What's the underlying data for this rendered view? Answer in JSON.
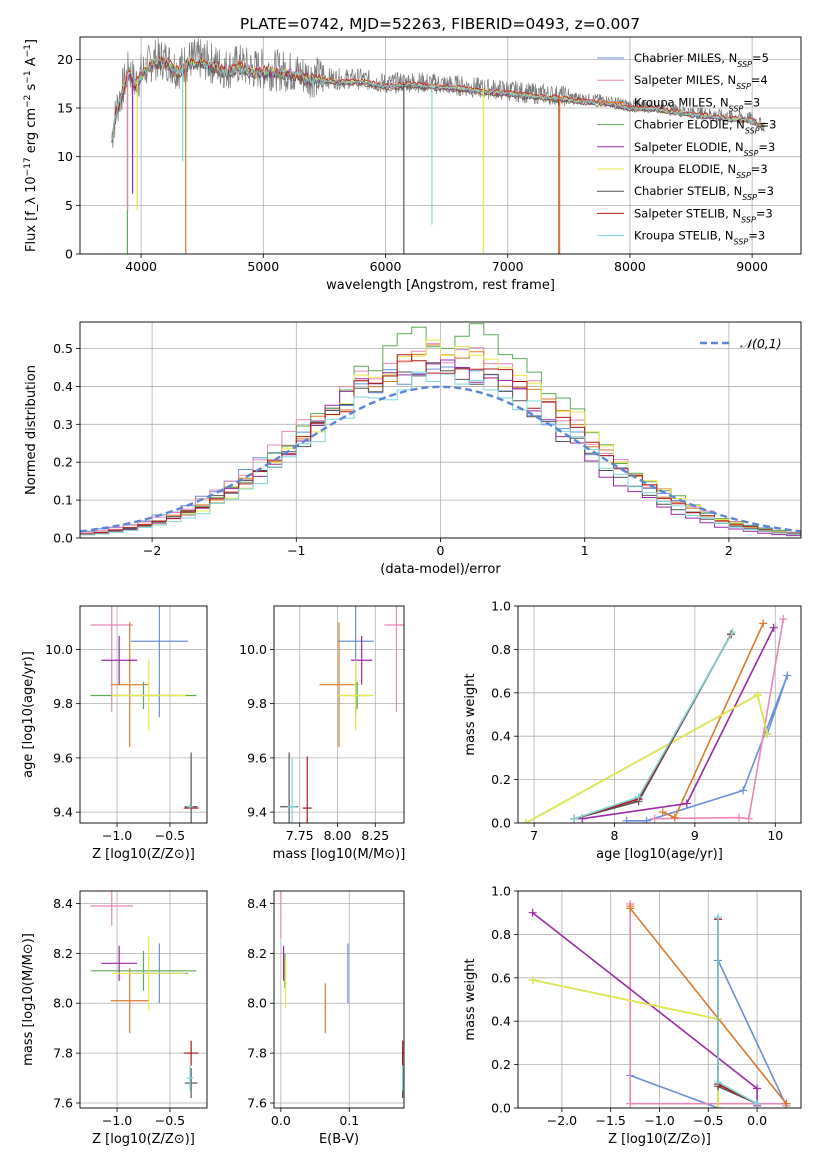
{
  "title": "PLATE=0742, MJD=52263, FIBERID=0493, z=0.007",
  "colors": {
    "Chabrier MILES": "#6a8fdb",
    "Salpeter MILES": "#e887b8",
    "Kroupa MILES": "#dd7a2a",
    "Chabrier ELODIE": "#5aaa55",
    "Salpeter ELODIE": "#9a2aa8",
    "Kroupa ELODIE": "#e6e84a",
    "Chabrier STELIB": "#555555",
    "Salpeter STELIB": "#b01818",
    "Kroupa STELIB": "#7fd8dc",
    "gauss": "#5b86d6"
  },
  "legend_spectrum": [
    "Chabrier MILES, N_SSP=5",
    "Salpeter MILES, N_SSP=4",
    "Kroupa MILES, N_SSP=3",
    "Chabrier ELODIE, N_SSP=3",
    "Salpeter ELODIE, N_SSP=3",
    "Kroupa ELODIE, N_SSP=3",
    "Chabrier STELIB, N_SSP=3",
    "Salpeter STELIB, N_SSP=3",
    "Kroupa STELIB, N_SSP=3"
  ],
  "legend_names": [
    "Chabrier MILES",
    "Salpeter MILES",
    "Kroupa MILES",
    "Chabrier ELODIE",
    "Salpeter ELODIE",
    "Kroupa ELODIE",
    "Chabrier STELIB",
    "Salpeter STELIB",
    "Kroupa STELIB"
  ],
  "legend_nssp": [
    "5",
    "4",
    "3",
    "3",
    "3",
    "3",
    "3",
    "3",
    "3"
  ],
  "legend_hist": "𝒩(0,1)",
  "chart_data": [
    {
      "id": "spectrum",
      "type": "line",
      "xlabel": "wavelength [Angstrom, rest frame]",
      "ylabel": "Flux [f_λ 10^-17 erg cm^-2 s^-1 A^-1]",
      "xlim": [
        3500,
        9400
      ],
      "ylim": [
        0,
        22.3
      ],
      "xticks": [
        4000,
        5000,
        6000,
        7000,
        8000,
        9000
      ],
      "yticks": [
        0,
        5,
        10,
        15,
        20
      ],
      "observed": {
        "x": [
          3760,
          3800,
          3850,
          3900,
          3950,
          4000,
          4100,
          4200,
          4300,
          4400,
          4500,
          4600,
          4700,
          4800,
          4900,
          5000,
          5200,
          5400,
          5600,
          5800,
          6000,
          6200,
          6400,
          6600,
          6800,
          7000,
          7200,
          7400,
          7600,
          7800,
          8000,
          8200,
          8400,
          8600,
          8800,
          9000,
          9100
        ],
        "y": [
          12,
          15,
          17,
          19,
          17.5,
          18.5,
          20,
          20,
          19,
          20,
          20,
          19.5,
          19,
          19.5,
          19,
          19,
          18.8,
          18.2,
          18,
          18,
          17.5,
          17.7,
          17.5,
          17.3,
          17,
          16.8,
          16.5,
          16.3,
          16,
          15.8,
          15.3,
          15.2,
          14.8,
          14.5,
          14.2,
          14,
          13.2
        ]
      },
      "model_scale": [
        1.0,
        1.01,
        0.99,
        1.0,
        0.995,
        1.005,
        0.985,
        1.01,
        1.0
      ],
      "dips": [
        {
          "x": 3888,
          "y": 0,
          "series": "Chabrier ELODIE"
        },
        {
          "x": 3890,
          "y": 4.5,
          "series": "Salpeter MILES"
        },
        {
          "x": 3930,
          "y": 6.2,
          "series": "Salpeter ELODIE"
        },
        {
          "x": 3968,
          "y": 4.5,
          "series": "Kroupa ELODIE"
        },
        {
          "x": 4340,
          "y": 9.5,
          "series": "Kroupa STELIB"
        },
        {
          "x": 4365,
          "y": 0,
          "series": "Kroupa MILES"
        },
        {
          "x": 6150,
          "y": 0,
          "series": "Chabrier STELIB"
        },
        {
          "x": 6380,
          "y": 3,
          "series": "Kroupa STELIB"
        },
        {
          "x": 6800,
          "y": 0,
          "series": "Kroupa ELODIE"
        },
        {
          "x": 7420,
          "y": 0,
          "series": "Salpeter STELIB"
        },
        {
          "x": 7425,
          "y": 0,
          "series": "Kroupa MILES"
        }
      ]
    },
    {
      "id": "residuals",
      "type": "area",
      "xlabel": "(data-model)/error",
      "ylabel": "Normed distribution",
      "xlim": [
        -2.5,
        2.5
      ],
      "ylim": [
        0,
        0.57
      ],
      "xticks": [
        -2,
        -1,
        0,
        1,
        2
      ],
      "yticks": [
        0,
        0.1,
        0.2,
        0.3,
        0.4,
        0.5
      ],
      "bin_width": 0.1,
      "gauss": {
        "mean": 0,
        "sigma": 1
      },
      "peak_heights": [
        0.45,
        0.5,
        0.48,
        0.54,
        0.47,
        0.52,
        0.44,
        0.47,
        0.43
      ],
      "offsets": [
        -0.03,
        0.0,
        0.02,
        0.05,
        -0.05,
        0.07,
        -0.02,
        0.01,
        0.03
      ],
      "widths": [
        0.95,
        0.92,
        0.9,
        0.88,
        0.85,
        0.87,
        0.9,
        0.9,
        0.88
      ]
    },
    {
      "id": "Z-age",
      "type": "scatter",
      "xlabel": "Z [log10(Z/Z⊙)]",
      "ylabel": "age [log10(age/yr)]",
      "xlim": [
        -1.35,
        -0.15
      ],
      "ylim": [
        9.36,
        10.16
      ],
      "xticks": [
        -1.0,
        -0.5
      ],
      "yticks": [
        9.4,
        9.6,
        9.8,
        10.0
      ],
      "points": [
        {
          "x": -0.6,
          "xerr": 0.27,
          "y": 10.03,
          "yerr": 0.28,
          "series": "Chabrier MILES"
        },
        {
          "x": -1.05,
          "xerr": 0.2,
          "y": 10.09,
          "yerr": 0.32,
          "series": "Salpeter MILES"
        },
        {
          "x": -0.88,
          "xerr": 0.18,
          "y": 9.87,
          "yerr": 0.23,
          "series": "Kroupa MILES"
        },
        {
          "x": -0.75,
          "xerr": 0.5,
          "y": 9.83,
          "yerr": 0.05,
          "series": "Chabrier ELODIE"
        },
        {
          "x": -0.98,
          "xerr": 0.17,
          "y": 9.96,
          "yerr": 0.09,
          "series": "Salpeter ELODIE"
        },
        {
          "x": -0.7,
          "xerr": 0.35,
          "y": 9.83,
          "yerr": 0.13,
          "series": "Kroupa ELODIE"
        },
        {
          "x": -0.3,
          "xerr": 0.06,
          "y": 9.42,
          "yerr": 0.2,
          "series": "Chabrier STELIB"
        },
        {
          "x": -0.3,
          "xerr": 0.07,
          "y": 9.415,
          "yerr": 0.005,
          "series": "Salpeter STELIB"
        },
        {
          "x": -0.31,
          "xerr": 0.03,
          "y": 9.42,
          "yerr": 0.01,
          "series": "Kroupa STELIB"
        }
      ]
    },
    {
      "id": "mass-age",
      "type": "scatter",
      "xlabel": "mass [log10(M/M⊙)]",
      "ylabel": "",
      "xlim": [
        7.58,
        8.44
      ],
      "ylim": [
        9.36,
        10.16
      ],
      "xticks": [
        7.75,
        8.0,
        8.25
      ],
      "yticks": [
        9.4,
        9.6,
        9.8,
        10.0
      ],
      "points": [
        {
          "x": 8.12,
          "xerr": 0.12,
          "y": 10.03,
          "yerr": 0.28,
          "series": "Chabrier MILES"
        },
        {
          "x": 8.39,
          "xerr": 0.08,
          "y": 10.09,
          "yerr": 0.32,
          "series": "Salpeter MILES"
        },
        {
          "x": 8.01,
          "xerr": 0.13,
          "y": 9.87,
          "yerr": 0.23,
          "series": "Kroupa MILES"
        },
        {
          "x": 8.13,
          "xerr": 0.08,
          "y": 9.83,
          "yerr": 0.05,
          "series": "Chabrier ELODIE"
        },
        {
          "x": 8.16,
          "xerr": 0.07,
          "y": 9.96,
          "yerr": 0.09,
          "series": "Salpeter ELODIE"
        },
        {
          "x": 8.12,
          "xerr": 0.12,
          "y": 9.83,
          "yerr": 0.13,
          "series": "Kroupa ELODIE"
        },
        {
          "x": 7.68,
          "xerr": 0.06,
          "y": 9.42,
          "yerr": 0.2,
          "series": "Chabrier STELIB"
        },
        {
          "x": 7.8,
          "xerr": 0.03,
          "y": 9.415,
          "yerr": 0.19,
          "series": "Salpeter STELIB"
        },
        {
          "x": 7.7,
          "xerr": 0.03,
          "y": 9.42,
          "yerr": 0.18,
          "series": "Kroupa STELIB"
        }
      ]
    },
    {
      "id": "age-weight",
      "type": "line",
      "xlabel": "age [log10(age/yr)]",
      "ylabel": "mass weight",
      "xlim": [
        6.8,
        10.32
      ],
      "ylim": [
        0,
        1.0
      ],
      "xticks": [
        7,
        8,
        9,
        10
      ],
      "yticks": [
        0,
        0.2,
        0.4,
        0.6,
        0.8,
        1.0
      ],
      "series": [
        {
          "name": "Chabrier MILES",
          "x": [
            8.15,
            8.4,
            9.6,
            10.15,
            9.9
          ],
          "y": [
            0.01,
            0.01,
            0.15,
            0.68,
            0.41
          ]
        },
        {
          "name": "Salpeter MILES",
          "x": [
            8.5,
            9.55,
            9.67,
            10.1
          ],
          "y": [
            0.02,
            0.025,
            0.02,
            0.94
          ]
        },
        {
          "name": "Kroupa MILES",
          "x": [
            8.6,
            8.75,
            9.85
          ],
          "y": [
            0.05,
            0.025,
            0.92
          ]
        },
        {
          "name": "Chabrier ELODIE",
          "x": [
            6.9,
            9.78,
            9.9
          ],
          "y": [
            0.0,
            0.59,
            0.41
          ]
        },
        {
          "name": "Salpeter ELODIE",
          "x": [
            7.6,
            8.9,
            9.98
          ],
          "y": [
            0.02,
            0.09,
            0.9
          ]
        },
        {
          "name": "Kroupa ELODIE",
          "x": [
            6.9,
            9.78,
            9.9
          ],
          "y": [
            0.0,
            0.59,
            0.41
          ]
        },
        {
          "name": "Chabrier STELIB",
          "x": [
            7.5,
            8.3,
            9.45
          ],
          "y": [
            0.02,
            0.1,
            0.87
          ]
        },
        {
          "name": "Salpeter STELIB",
          "x": [
            7.5,
            8.3,
            9.45
          ],
          "y": [
            0.02,
            0.11,
            0.87
          ]
        },
        {
          "name": "Kroupa STELIB",
          "x": [
            7.5,
            8.3,
            9.47
          ],
          "y": [
            0.02,
            0.12,
            0.88
          ]
        }
      ]
    },
    {
      "id": "Z-mass",
      "type": "scatter",
      "xlabel": "Z [log10(Z/Z⊙)]",
      "ylabel": "mass [log10(M/M⊙)]",
      "xlim": [
        -1.35,
        -0.15
      ],
      "ylim": [
        7.58,
        8.45
      ],
      "xticks": [
        -1.0,
        -0.5
      ],
      "yticks": [
        7.6,
        7.8,
        8.0,
        8.2,
        8.4
      ],
      "points": [
        {
          "x": -0.6,
          "xerr": 0.27,
          "y": 8.12,
          "yerr": 0.12,
          "series": "Chabrier MILES"
        },
        {
          "x": -1.05,
          "xerr": 0.2,
          "y": 8.39,
          "yerr": 0.08,
          "series": "Salpeter MILES"
        },
        {
          "x": -0.88,
          "xerr": 0.18,
          "y": 8.01,
          "yerr": 0.13,
          "series": "Kroupa MILES"
        },
        {
          "x": -0.75,
          "xerr": 0.5,
          "y": 8.13,
          "yerr": 0.08,
          "series": "Chabrier ELODIE"
        },
        {
          "x": -0.98,
          "xerr": 0.17,
          "y": 8.16,
          "yerr": 0.07,
          "series": "Salpeter ELODIE"
        },
        {
          "x": -0.7,
          "xerr": 0.35,
          "y": 8.12,
          "yerr": 0.15,
          "series": "Kroupa ELODIE"
        },
        {
          "x": -0.3,
          "xerr": 0.06,
          "y": 7.68,
          "yerr": 0.06,
          "series": "Chabrier STELIB"
        },
        {
          "x": -0.3,
          "xerr": 0.07,
          "y": 7.8,
          "yerr": 0.05,
          "series": "Salpeter STELIB"
        },
        {
          "x": -0.31,
          "xerr": 0.03,
          "y": 7.7,
          "yerr": 0.05,
          "series": "Kroupa STELIB"
        }
      ]
    },
    {
      "id": "EBV-mass",
      "type": "scatter",
      "xlabel": "E(B-V)",
      "ylabel": "",
      "xlim": [
        -0.01,
        0.18
      ],
      "ylim": [
        7.58,
        8.45
      ],
      "xticks": [
        0.0,
        0.1
      ],
      "yticks": [
        7.6,
        7.8,
        8.0,
        8.2,
        8.4
      ],
      "points": [
        {
          "x": 0.098,
          "xerr": 0.001,
          "y": 8.12,
          "yerr": 0.12,
          "series": "Chabrier MILES"
        },
        {
          "x": 0.0,
          "xerr": 0.001,
          "y": 8.36,
          "yerr": 0.1,
          "series": "Salpeter MILES"
        },
        {
          "x": 0.065,
          "xerr": 0.001,
          "y": 7.98,
          "yerr": 0.1,
          "series": "Kroupa MILES"
        },
        {
          "x": 0.006,
          "xerr": 0.001,
          "y": 8.13,
          "yerr": 0.07,
          "series": "Chabrier ELODIE"
        },
        {
          "x": 0.004,
          "xerr": 0.001,
          "y": 8.16,
          "yerr": 0.07,
          "series": "Salpeter ELODIE"
        },
        {
          "x": 0.007,
          "xerr": 0.001,
          "y": 8.08,
          "yerr": 0.1,
          "series": "Kroupa ELODIE"
        },
        {
          "x": 0.178,
          "xerr": 0.001,
          "y": 7.68,
          "yerr": 0.06,
          "series": "Chabrier STELIB"
        },
        {
          "x": 0.178,
          "xerr": 0.001,
          "y": 7.8,
          "yerr": 0.05,
          "series": "Salpeter STELIB"
        },
        {
          "x": 0.178,
          "xerr": 0.001,
          "y": 7.7,
          "yerr": 0.05,
          "series": "Kroupa STELIB"
        }
      ]
    },
    {
      "id": "Z-weight",
      "type": "line",
      "xlabel": "Z [log10(Z/Z⊙)]",
      "ylabel": "mass weight",
      "xlim": [
        -2.45,
        0.45
      ],
      "ylim": [
        0,
        1.0
      ],
      "xticks": [
        -2.0,
        -1.5,
        -1.0,
        -0.5,
        0.0
      ],
      "yticks": [
        0,
        0.2,
        0.4,
        0.6,
        0.8,
        1.0
      ],
      "series": [
        {
          "name": "Chabrier MILES",
          "x": [
            -1.3,
            -0.4,
            -0.4,
            0.3
          ],
          "y": [
            0.15,
            0.0,
            0.68,
            0.01
          ]
        },
        {
          "name": "Salpeter MILES",
          "x": [
            -1.3,
            -1.3,
            0.3,
            0.3
          ],
          "y": [
            0.94,
            0.02,
            0.02,
            0.01
          ]
        },
        {
          "name": "Kroupa MILES",
          "x": [
            0.3,
            -1.3,
            -1.3
          ],
          "y": [
            0.02,
            0.92,
            0.93
          ]
        },
        {
          "name": "Chabrier ELODIE",
          "x": [
            -2.3,
            -0.4,
            -0.4
          ],
          "y": [
            0.59,
            0.41,
            0.0
          ]
        },
        {
          "name": "Salpeter ELODIE",
          "x": [
            -2.3,
            0.0,
            0.0
          ],
          "y": [
            0.9,
            0.09,
            0.01
          ]
        },
        {
          "name": "Kroupa ELODIE",
          "x": [
            -2.3,
            -0.4,
            -0.4
          ],
          "y": [
            0.59,
            0.41,
            0.0
          ]
        },
        {
          "name": "Chabrier STELIB",
          "x": [
            -0.4,
            -0.4,
            0.0
          ],
          "y": [
            0.87,
            0.1,
            0.02
          ]
        },
        {
          "name": "Salpeter STELIB",
          "x": [
            -0.4,
            -0.4,
            0.0
          ],
          "y": [
            0.87,
            0.11,
            0.02
          ]
        },
        {
          "name": "Kroupa STELIB",
          "x": [
            -0.4,
            -0.4,
            0.0
          ],
          "y": [
            0.88,
            0.12,
            0.02
          ]
        }
      ]
    }
  ]
}
